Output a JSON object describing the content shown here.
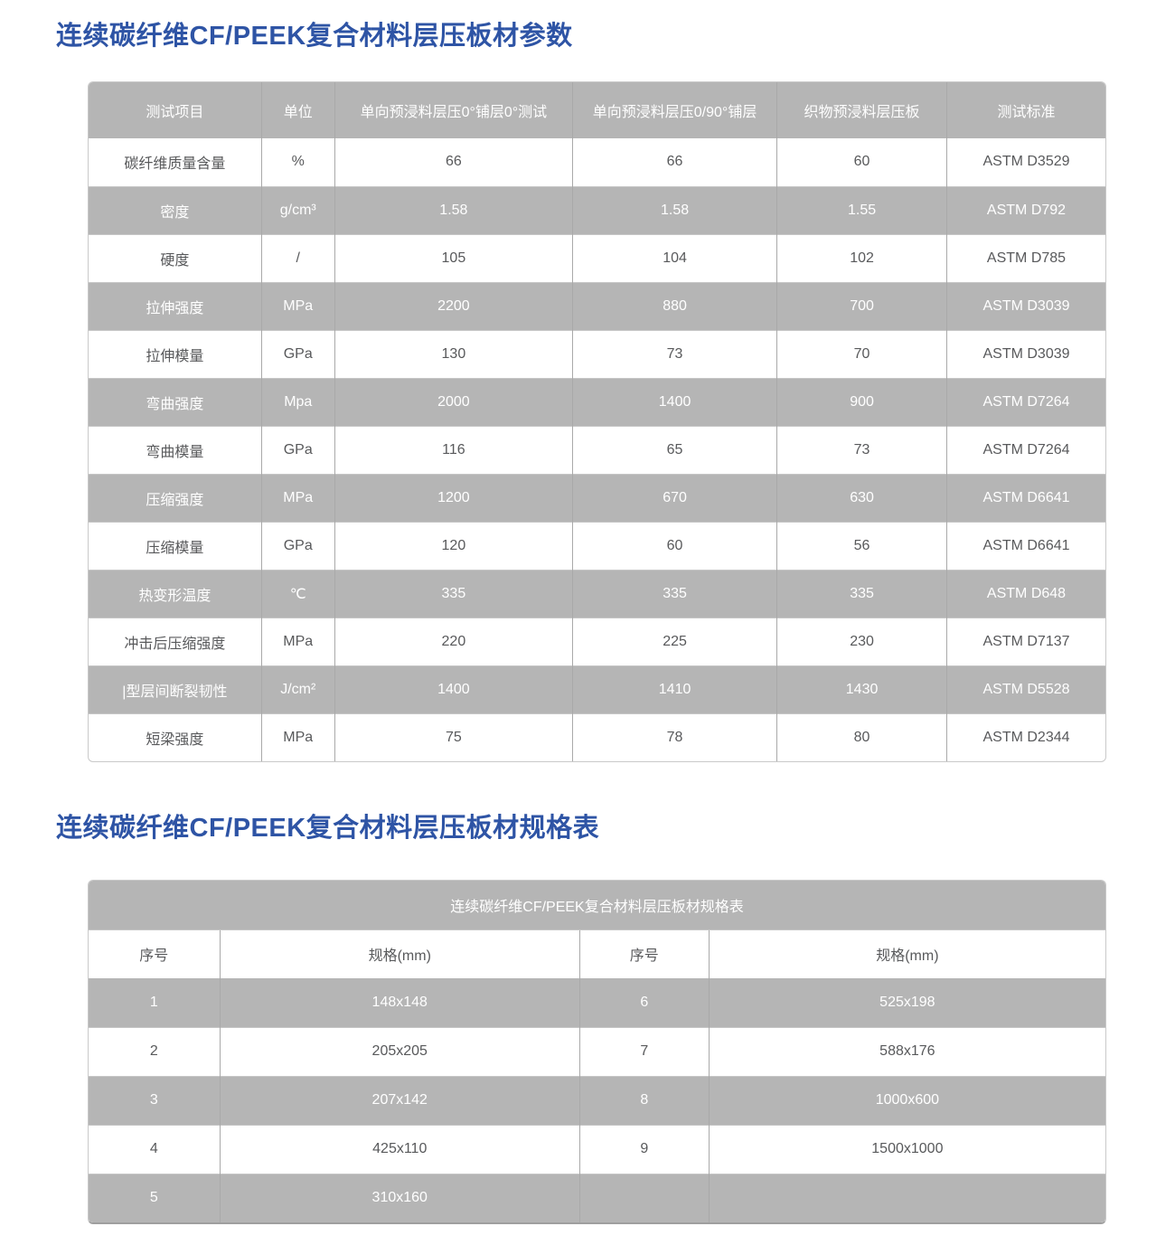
{
  "titles": {
    "params": "连续碳纤维CF/PEEK复合材料层压板材参数",
    "spec": "连续碳纤维CF/PEEK复合材料层压板材规格表"
  },
  "params_table": {
    "headers": [
      "测试项目",
      "单位",
      "单向预浸料层压0°铺层0°测试",
      "单向预浸料层压0/90°铺层",
      "织物预浸料层压板",
      "测试标准"
    ],
    "rows": [
      [
        "碳纤维质量含量",
        "%",
        "66",
        "66",
        "60",
        "ASTM D3529"
      ],
      [
        "密度",
        "g/cm³",
        "1.58",
        "1.58",
        "1.55",
        "ASTM D792"
      ],
      [
        "硬度",
        "/",
        "105",
        "104",
        "102",
        "ASTM D785"
      ],
      [
        "拉伸强度",
        "MPa",
        "2200",
        "880",
        "700",
        "ASTM D3039"
      ],
      [
        "拉伸模量",
        "GPa",
        "130",
        "73",
        "70",
        "ASTM D3039"
      ],
      [
        "弯曲强度",
        "Mpa",
        "2000",
        "1400",
        "900",
        "ASTM D7264"
      ],
      [
        "弯曲模量",
        "GPa",
        "116",
        "65",
        "73",
        "ASTM D7264"
      ],
      [
        "压缩强度",
        "MPa",
        "1200",
        "670",
        "630",
        "ASTM D6641"
      ],
      [
        "压缩模量",
        "GPa",
        "120",
        "60",
        "56",
        "ASTM D6641"
      ],
      [
        "热变形温度",
        "℃",
        "335",
        "335",
        "335",
        "ASTM D648"
      ],
      [
        "冲击后压缩强度",
        "MPa",
        "220",
        "225",
        "230",
        "ASTM D7137"
      ],
      [
        "|型层间断裂韧性",
        "J/cm²",
        "1400",
        "1410",
        "1430",
        "ASTM D5528"
      ],
      [
        "短梁强度",
        "MPa",
        "75",
        "78",
        "80",
        "ASTM D2344"
      ]
    ]
  },
  "spec_table": {
    "banner": "连续碳纤维CF/PEEK复合材料层压板材规格表",
    "headers": [
      "序号",
      "规格(mm)",
      "序号",
      "规格(mm)"
    ],
    "rows": [
      [
        "1",
        "148x148",
        "6",
        "525x198"
      ],
      [
        "2",
        "205x205",
        "7",
        "588x176"
      ],
      [
        "3",
        "207x142",
        "8",
        "1000x600"
      ],
      [
        "4",
        "425x110",
        "9",
        "1500x1000"
      ],
      [
        "5",
        "310x160",
        "",
        ""
      ]
    ]
  },
  "colors": {
    "title_blue": "#2e54a5",
    "row_gray": "#b5b5b5",
    "text_dark": "#58595b",
    "text_on_gray": "#ffffff"
  }
}
